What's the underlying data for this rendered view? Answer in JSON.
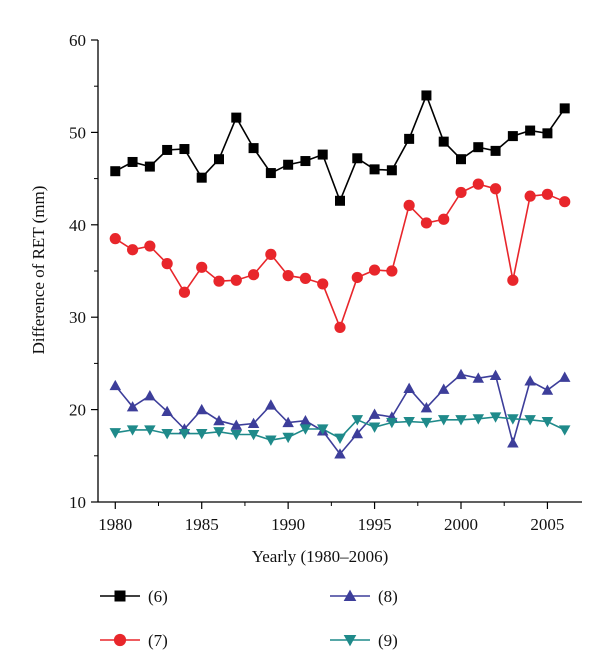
{
  "chart_data": {
    "type": "line",
    "xlabel": "Yearly (1980–2006)",
    "ylabel": "Difference of RET (mm)",
    "xlim": [
      1979,
      2007
    ],
    "ylim": [
      10,
      60
    ],
    "xticks": [
      1980,
      1985,
      1990,
      1995,
      2000,
      2005
    ],
    "yticks": [
      10,
      20,
      30,
      40,
      50,
      60
    ],
    "x_tick_labels": [
      "1980",
      "1985",
      "1990",
      "1995",
      "2000",
      "2005"
    ],
    "y_tick_labels": [
      "10",
      "20",
      "30",
      "40",
      "50",
      "60"
    ],
    "legend_placement": "bottom",
    "grid": false,
    "x": [
      1980,
      1981,
      1982,
      1983,
      1984,
      1985,
      1986,
      1987,
      1988,
      1989,
      1990,
      1991,
      1992,
      1993,
      1994,
      1995,
      1996,
      1997,
      1998,
      1999,
      2000,
      2001,
      2002,
      2003,
      2004,
      2005,
      2006
    ],
    "series": [
      {
        "name": "(6)",
        "color": "#000000",
        "marker": "square",
        "values": [
          45.8,
          46.8,
          46.3,
          48.1,
          48.2,
          45.1,
          47.1,
          51.6,
          48.3,
          45.6,
          46.5,
          46.9,
          47.6,
          42.6,
          47.2,
          46.0,
          45.9,
          49.3,
          54.0,
          49.0,
          47.1,
          48.4,
          48.0,
          49.6,
          50.2,
          49.9,
          52.6
        ]
      },
      {
        "name": "(7)",
        "color": "#e8262b",
        "marker": "circle",
        "values": [
          38.5,
          37.3,
          37.7,
          35.8,
          32.7,
          35.4,
          33.9,
          34.0,
          34.6,
          36.8,
          34.5,
          34.2,
          33.6,
          28.9,
          34.3,
          35.1,
          35.0,
          42.1,
          40.2,
          40.6,
          43.5,
          44.4,
          43.9,
          34.0,
          43.1,
          43.3,
          42.5
        ]
      },
      {
        "name": "(8)",
        "color": "#3d3e9a",
        "marker": "triangle-up",
        "values": [
          22.6,
          20.3,
          21.5,
          19.8,
          17.9,
          20.0,
          18.8,
          18.3,
          18.5,
          20.5,
          18.6,
          18.8,
          17.7,
          15.2,
          17.4,
          19.5,
          19.2,
          22.3,
          20.2,
          22.2,
          23.8,
          23.4,
          23.7,
          16.4,
          23.1,
          22.1,
          23.5
        ]
      },
      {
        "name": "(9)",
        "color": "#1f8a8a",
        "marker": "triangle-down",
        "values": [
          17.5,
          17.8,
          17.8,
          17.4,
          17.4,
          17.4,
          17.6,
          17.3,
          17.3,
          16.7,
          17.0,
          17.9,
          17.9,
          16.9,
          18.9,
          18.1,
          18.6,
          18.7,
          18.6,
          18.9,
          18.9,
          19.0,
          19.2,
          19.0,
          18.9,
          18.7,
          17.8
        ]
      }
    ]
  }
}
